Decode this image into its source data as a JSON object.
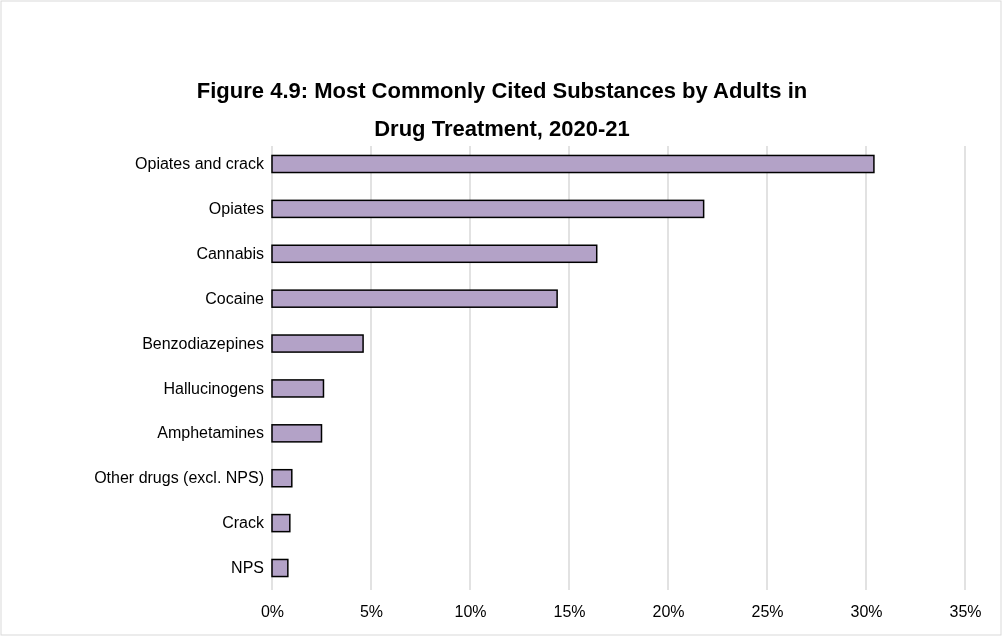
{
  "chart_data": {
    "type": "bar",
    "orientation": "horizontal",
    "title": "Figure 4.9: Most Commonly Cited Substances by Adults in Drug Treatment, 2020-21",
    "categories": [
      "Opiates and crack",
      "Opiates",
      "Cannabis",
      "Cocaine",
      "Benzodiazepines",
      "Hallucinogens",
      "Amphetamines",
      "Other drugs (excl. NPS)",
      "Crack",
      "NPS"
    ],
    "values": [
      30.4,
      21.8,
      16.4,
      14.4,
      4.6,
      2.6,
      2.5,
      1.0,
      0.9,
      0.8
    ],
    "color": "#b3a2c7",
    "xlim": [
      0,
      35
    ],
    "xticks": [
      {
        "value": 0,
        "label": "0%"
      },
      {
        "value": 5,
        "label": "5%"
      },
      {
        "value": 10,
        "label": "10%"
      },
      {
        "value": 15,
        "label": "15%"
      },
      {
        "value": 20,
        "label": "20%"
      },
      {
        "value": 25,
        "label": "25%"
      },
      {
        "value": 30,
        "label": "30%"
      },
      {
        "value": 35,
        "label": "35%"
      }
    ],
    "grid": "x"
  }
}
